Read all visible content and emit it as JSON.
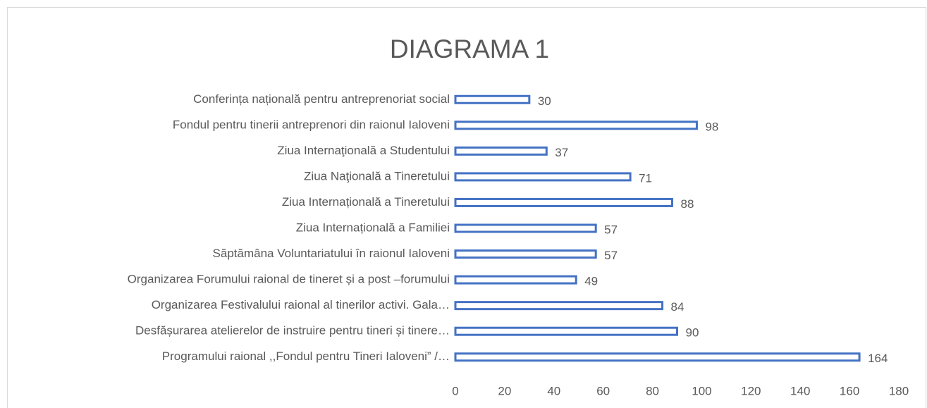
{
  "chart_data": {
    "type": "bar",
    "orientation": "horizontal",
    "title": "DIAGRAMA 1",
    "categories": [
      "Conferința națională pentru antreprenoriat social",
      "Fondul pentru tinerii antreprenori din raionul Ialoveni",
      "Ziua Internaţională a Studentului",
      "Ziua Naţională a Tineretului",
      "Ziua Internațională a Tineretului",
      "Ziua Internațională a Familiei",
      "Săptămâna Voluntariatului în raionul Ialoveni",
      "Organizarea Forumului raional de tineret și a post –forumului",
      "Organizarea Festivalului raional al tinerilor activi. Gala…",
      "Desfășurarea atelierelor de instruire pentru tineri și tinere…",
      "Programului raional ,,Fondul pentru Tineri Ialoveni” /…"
    ],
    "values": [
      30,
      98,
      37,
      71,
      88,
      57,
      57,
      49,
      84,
      90,
      164
    ],
    "color": "#4472c4",
    "xlim": [
      0,
      180
    ],
    "xticks": [
      0,
      20,
      40,
      60,
      80,
      100,
      120,
      140,
      160,
      180
    ],
    "grid": false
  }
}
